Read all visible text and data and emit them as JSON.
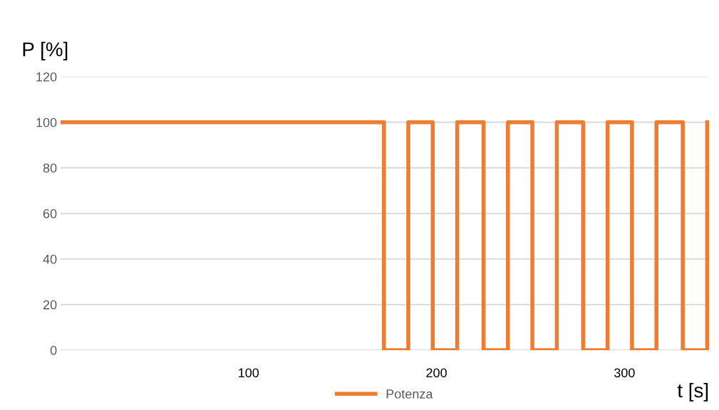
{
  "chart_data": {
    "type": "step",
    "xlabel": "t [s]",
    "ylabel": "P [%]",
    "x": [
      0,
      172,
      185,
      198,
      211,
      225,
      238,
      251,
      264,
      278,
      291,
      304,
      317,
      331,
      344
    ],
    "series": [
      {
        "name": "Potenza",
        "color": "#ed7d31",
        "values": [
          100,
          0,
          100,
          0,
          100,
          0,
          100,
          0,
          100,
          0,
          100,
          0,
          100,
          0,
          100
        ]
      }
    ],
    "xlim": [
      0,
      345
    ],
    "xticks": [
      100,
      200,
      300
    ],
    "ylim": [
      0,
      120
    ],
    "yticks": [
      0,
      20,
      40,
      60,
      80,
      100,
      120
    ],
    "grid": "y",
    "legend": "bottom"
  }
}
